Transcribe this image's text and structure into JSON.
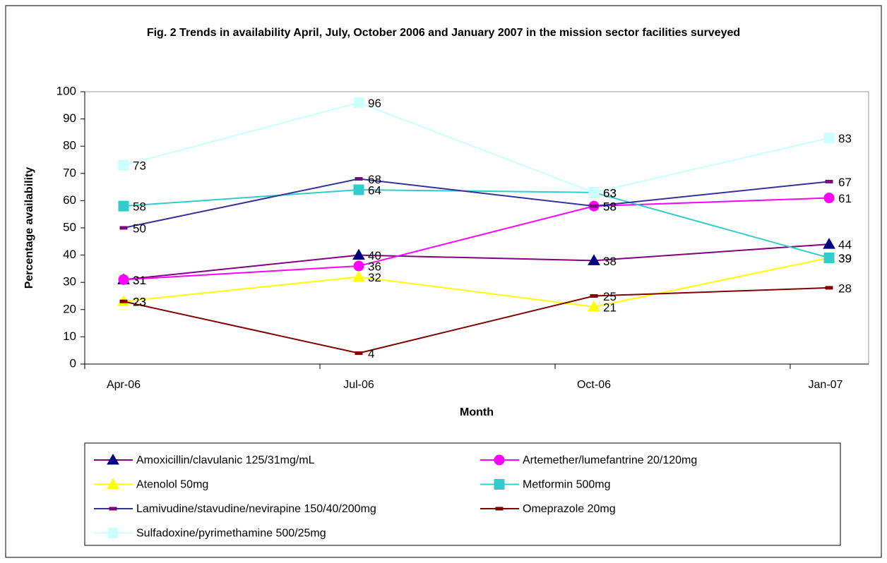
{
  "chart_data": {
    "type": "line",
    "title": "Fig. 2 Trends in availability April, July, October 2006 and January 2007 in the mission sector facilities surveyed",
    "x_label": "Month",
    "y_label": "Percentage availability",
    "categories": [
      "Apr-06",
      "Jul-06",
      "Oct-06",
      "Jan-07"
    ],
    "ylim": [
      0,
      100
    ],
    "yticks": [
      0,
      10,
      20,
      30,
      40,
      50,
      60,
      70,
      80,
      90,
      100
    ],
    "grid": false,
    "legend": "bottom",
    "series": [
      {
        "name": "Amoxicillin/clavulanic 125/31mg/mL",
        "color": "#800080",
        "marker": "triangle",
        "marker_color": "#000080",
        "values": [
          31,
          40,
          38,
          44
        ]
      },
      {
        "name": "Artemether/lumefantrine 20/120mg",
        "color": "#ff00ff",
        "marker": "circle",
        "marker_color": "#ff00ff",
        "values": [
          31,
          36,
          58,
          61
        ]
      },
      {
        "name": "Atenolol 50mg",
        "color": "#ffff00",
        "marker": "triangle",
        "marker_color": "#ffff00",
        "values": [
          23,
          32,
          21,
          39
        ]
      },
      {
        "name": "Metformin 500mg",
        "color": "#33cccc",
        "marker": "square",
        "marker_color": "#33cccc",
        "values": [
          58,
          64,
          63,
          39
        ]
      },
      {
        "name": "Lamivudine/stavudine/nevirapine 150/40/200mg",
        "color": "#333399",
        "marker": "dash",
        "marker_color": "#800080",
        "values": [
          50,
          68,
          58,
          67
        ]
      },
      {
        "name": "Omeprazole 20mg",
        "color": "#800000",
        "marker": "dash",
        "marker_color": "#800000",
        "values": [
          23,
          4,
          25,
          28
        ]
      },
      {
        "name": "Sulfadoxine/pyrimethamine 500/25mg",
        "color": "#ccffff",
        "marker": "square",
        "marker_color": "#ccffff",
        "values": [
          73,
          96,
          63,
          83
        ]
      }
    ]
  }
}
